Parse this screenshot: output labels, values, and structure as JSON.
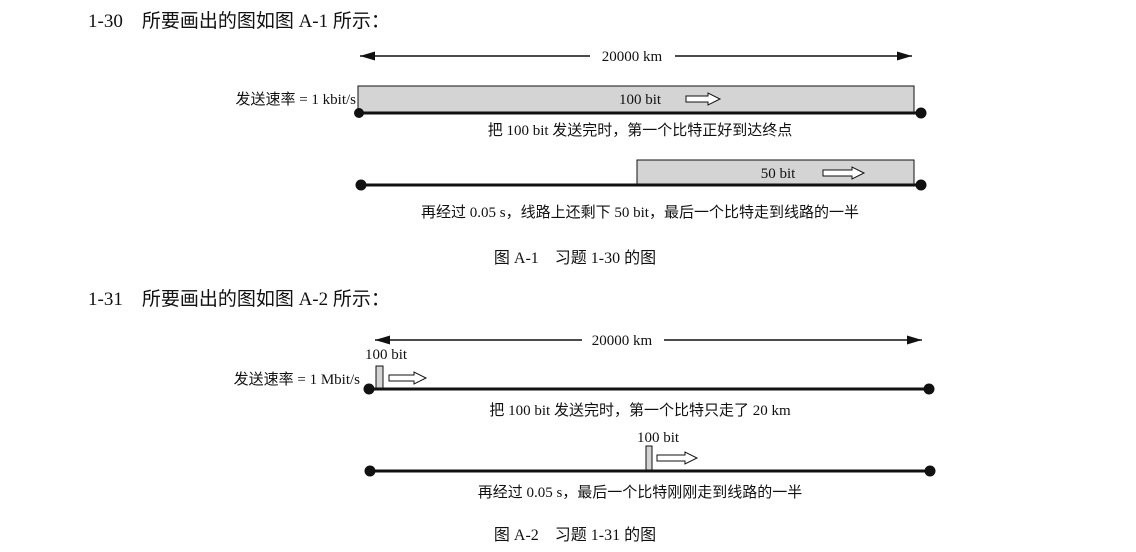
{
  "problem_1_30": {
    "intro": "1-30　所要画出的图如图 A-1 所示：",
    "distance_label": "20000 km",
    "rate_label": "发送速率 = 1 kbit/s",
    "state1": {
      "bits_label": "100 bit",
      "caption": "把 100 bit 发送完时，第一个比特正好到达终点"
    },
    "state2": {
      "bits_label": "50 bit",
      "caption": "再经过 0.05 s，线路上还剩下 50 bit，最后一个比特走到线路的一半"
    },
    "figure_caption": "图 A-1　习题 1-30 的图"
  },
  "problem_1_31": {
    "intro": "1-31　所要画出的图如图 A-2 所示：",
    "distance_label": "20000 km",
    "rate_label": "发送速率 = 1 Mbit/s",
    "state1": {
      "bits_label": "100 bit",
      "caption": "把 100 bit 发送完时，第一个比特只走了 20 km"
    },
    "state2": {
      "bits_label": "100 bit",
      "caption": "再经过 0.05 s，最后一个比特刚刚走到线路的一半"
    },
    "figure_caption": "图 A-2　习题 1-31 的图"
  },
  "colors": {
    "bar_fill": "#d4d4d4",
    "line": "#111111"
  }
}
